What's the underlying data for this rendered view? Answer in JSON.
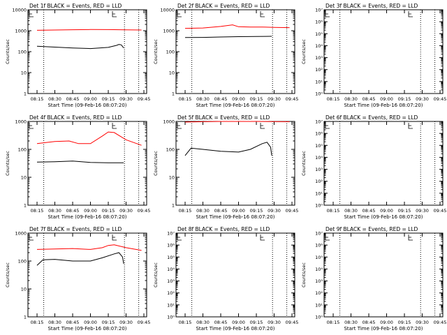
{
  "figure": {
    "panel_title_suffix": "BLACK = Events, RED = LLD",
    "xlabel": "Start Time (09-Feb-16 08:07:20)",
    "ylabel": "Counts/sec",
    "x_ticks": [
      "08:15",
      "08:30",
      "08:45",
      "09:00",
      "09:15",
      "09:30",
      "09:45"
    ],
    "colors": {
      "events": "#000000",
      "lld": "#ff0000",
      "background": "#ffffff"
    }
  },
  "chart_data": [
    {
      "type": "line",
      "title": "Det 1f BLACK = Events, RED = LLD",
      "scale": "log",
      "ylim": [
        1,
        10000
      ],
      "y_ticks": [
        "1",
        "10",
        "100",
        "1000",
        "10000"
      ],
      "series": [
        {
          "name": "Events",
          "x": [
            "08:15",
            "08:30",
            "08:45",
            "09:00",
            "09:15",
            "09:22",
            "09:24",
            "09:26",
            "09:28"
          ],
          "values": [
            180,
            165,
            150,
            140,
            160,
            200,
            220,
            210,
            150
          ]
        },
        {
          "name": "LLD",
          "x": [
            "08:15",
            "08:30",
            "08:45",
            "09:00",
            "09:15",
            "09:30",
            "09:43"
          ],
          "values": [
            1050,
            1080,
            1110,
            1140,
            1130,
            1100,
            1080
          ]
        }
      ]
    },
    {
      "type": "line",
      "title": "Det 2f BLACK = Events, RED = LLD",
      "scale": "log",
      "ylim": [
        1,
        10000
      ],
      "y_ticks": [
        "1",
        "10",
        "100",
        "1000",
        "10000"
      ],
      "series": [
        {
          "name": "Events",
          "x": [
            "08:15",
            "08:30",
            "08:45",
            "09:00",
            "09:15",
            "09:28"
          ],
          "values": [
            470,
            480,
            500,
            520,
            530,
            540
          ]
        },
        {
          "name": "LLD",
          "x": [
            "08:15",
            "08:30",
            "08:45",
            "08:55",
            "09:00",
            "09:10",
            "09:20",
            "09:30",
            "09:43"
          ],
          "values": [
            1300,
            1350,
            1600,
            1900,
            1550,
            1500,
            1500,
            1450,
            1400
          ]
        }
      ]
    },
    {
      "type": "line",
      "title": "Det 3f BLACK = Events, RED = LLD",
      "scale": "log",
      "ylim": [
        1,
        10000000
      ],
      "y_ticks": [
        "10⁰",
        "10¹",
        "10²",
        "10³",
        "10⁴",
        "10⁵",
        "10⁶",
        "10⁷"
      ],
      "series": []
    },
    {
      "type": "line",
      "title": "Det 4f BLACK = Events, RED = LLD",
      "scale": "log",
      "ylim": [
        1,
        1000
      ],
      "y_ticks": [
        "1",
        "10",
        "100",
        "1000"
      ],
      "series": [
        {
          "name": "Events",
          "x": [
            "08:15",
            "08:30",
            "08:45",
            "09:00",
            "09:15",
            "09:28"
          ],
          "values": [
            35,
            36,
            38,
            34,
            33,
            33
          ]
        },
        {
          "name": "LLD",
          "x": [
            "08:15",
            "08:30",
            "08:42",
            "08:50",
            "09:00",
            "09:10",
            "09:15",
            "09:20",
            "09:30",
            "09:43"
          ],
          "values": [
            160,
            190,
            200,
            160,
            160,
            300,
            420,
            400,
            220,
            140
          ]
        }
      ]
    },
    {
      "type": "line",
      "title": "Det 5f BLACK = Events, RED = LLD",
      "scale": "log",
      "ylim": [
        1,
        1000
      ],
      "y_ticks": [
        "1",
        "10",
        "100",
        "1000"
      ],
      "series": [
        {
          "name": "Events",
          "x": [
            "08:15",
            "08:20",
            "08:30",
            "08:45",
            "09:00",
            "09:10",
            "09:20",
            "09:24",
            "09:27",
            "09:28"
          ],
          "values": [
            60,
            110,
            100,
            85,
            80,
            100,
            160,
            180,
            120,
            60
          ]
        },
        {
          "name": "LLD",
          "x": [
            "08:15",
            "08:30",
            "08:45",
            "09:00",
            "09:15",
            "09:30",
            "09:43"
          ],
          "values": [
            950,
            980,
            1000,
            1000,
            1000,
            990,
            980
          ]
        }
      ]
    },
    {
      "type": "line",
      "title": "Det 6f BLACK = Events, RED = LLD",
      "scale": "log",
      "ylim": [
        1,
        10000000
      ],
      "y_ticks": [
        "10⁰",
        "10¹",
        "10²",
        "10³",
        "10⁴",
        "10⁵",
        "10⁶",
        "10⁷"
      ],
      "series": []
    },
    {
      "type": "line",
      "title": "Det 7f BLACK = Events, RED = LLD",
      "scale": "log",
      "ylim": [
        1,
        1000
      ],
      "y_ticks": [
        "1",
        "10",
        "100",
        "1000"
      ],
      "series": [
        {
          "name": "Events",
          "x": [
            "08:15",
            "08:20",
            "08:30",
            "08:45",
            "09:00",
            "09:10",
            "09:20",
            "09:24",
            "09:27",
            "09:28"
          ],
          "values": [
            70,
            110,
            115,
            100,
            100,
            130,
            180,
            200,
            140,
            80
          ]
        },
        {
          "name": "LLD",
          "x": [
            "08:15",
            "08:30",
            "08:45",
            "09:00",
            "09:10",
            "09:15",
            "09:20",
            "09:30",
            "09:43"
          ],
          "values": [
            260,
            270,
            280,
            260,
            300,
            360,
            380,
            300,
            240
          ]
        }
      ]
    },
    {
      "type": "line",
      "title": "Det 8f BLACK = Events, RED = LLD",
      "scale": "log",
      "ylim": [
        1,
        10000000
      ],
      "y_ticks": [
        "10⁰",
        "10¹",
        "10²",
        "10³",
        "10⁴",
        "10⁵",
        "10⁶",
        "10⁷"
      ],
      "series": []
    },
    {
      "type": "line",
      "title": "Det 9f BLACK = Events, RED = LLD",
      "scale": "log",
      "ylim": [
        1,
        10000000
      ],
      "y_ticks": [
        "10⁰",
        "10¹",
        "10²",
        "10³",
        "10⁴",
        "10⁵",
        "10⁶",
        "10⁷"
      ],
      "series": []
    }
  ]
}
